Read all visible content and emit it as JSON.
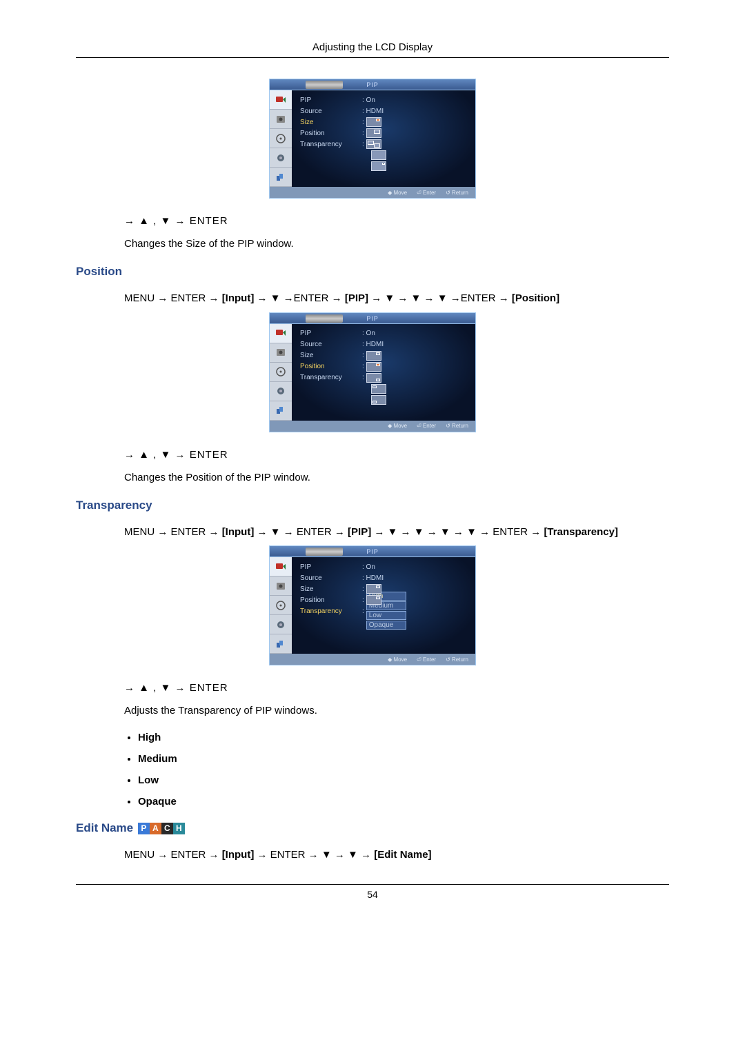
{
  "page": {
    "header": "Adjusting the LCD Display",
    "number": "54"
  },
  "nav_keys": "→ ▲ , ▼ → ENTER",
  "osd": {
    "title": "PIP",
    "footer": {
      "move": "◆ Move",
      "enter": "⏎ Enter",
      "return": "↺ Return"
    },
    "labels": {
      "pip": "PIP",
      "source": "Source",
      "size": "Size",
      "position": "Position",
      "transparency": "Transparency"
    },
    "values": {
      "on": ": On",
      "hdmi": ": HDMI",
      "colon": ":"
    },
    "trans_opts": [
      "High",
      "Medium",
      "Low",
      "Opaque"
    ]
  },
  "size": {
    "desc": "Changes the Size of the PIP window."
  },
  "position": {
    "title": "Position",
    "path_a": "MENU → ENTER → ",
    "input": "[Input]",
    "path_b": " → ▼ →ENTER → ",
    "pip": "[PIP]",
    "path_c": " → ▼ → ▼ → ▼ →ENTER → ",
    "posb": "[Position]",
    "desc": "Changes the Position of the PIP window."
  },
  "transparency": {
    "title": "Transparency",
    "path_a": "MENU → ENTER → ",
    "input": "[Input]",
    "path_b": " → ▼ → ENTER → ",
    "pip": "[PIP]",
    "path_c": " → ▼ → ▼ → ▼ → ▼ → ENTER → ",
    "trb": "[Transparency]",
    "desc": "Adjusts the Transparency of PIP windows.",
    "bullets": [
      "High",
      "Medium",
      "Low",
      "Opaque"
    ]
  },
  "editname": {
    "title": "Edit Name",
    "badges": [
      {
        "t": "P",
        "c": "#3a7ad8"
      },
      {
        "t": "A",
        "c": "#d86a2a"
      },
      {
        "t": "C",
        "c": "#2a2a2a"
      },
      {
        "t": "H",
        "c": "#2a8a9a"
      }
    ],
    "path_a": "MENU → ENTER → ",
    "input": "[Input]",
    "path_b": " → ENTER → ▼ → ▼ → ",
    "en": "[Edit Name]"
  }
}
